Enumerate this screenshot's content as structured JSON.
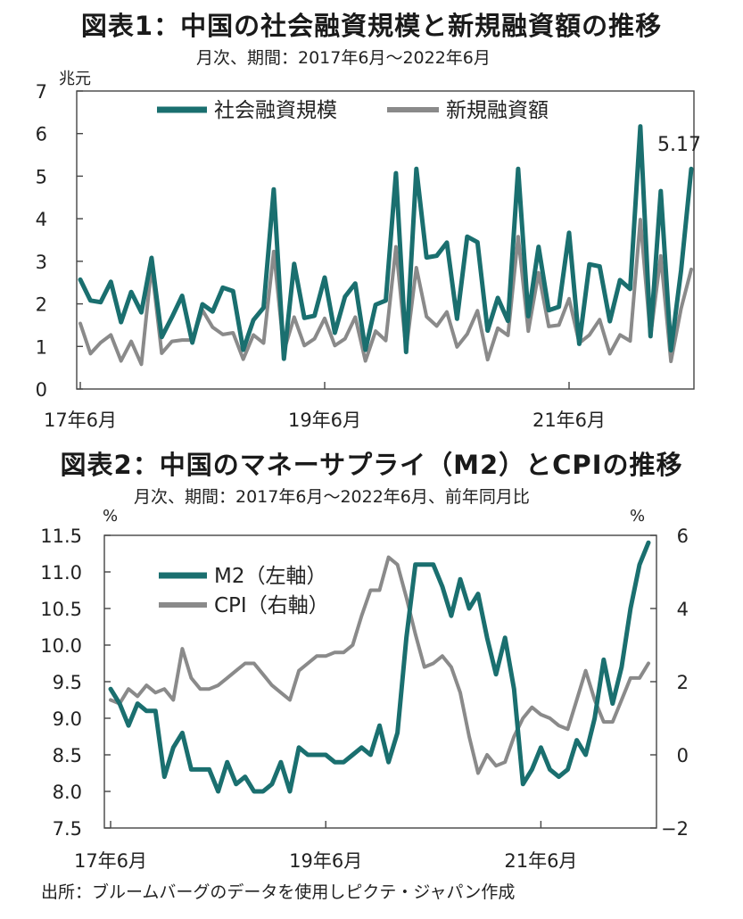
{
  "source": "出所：ブルームバーグのデータを使用しピクテ・ジャパン作成",
  "colors": {
    "teal": "#1a6f6f",
    "gray": "#8a8a8a",
    "axis": "#444444"
  },
  "chart_data": [
    {
      "type": "line",
      "title": "図表1：中国の社会融資規模と新規融資額の推移",
      "subtitle": "月次、期間：2017年6月～2022年6月",
      "ylabel": "兆元",
      "ylim": [
        0,
        7
      ],
      "yticks": [
        "0",
        "1",
        "2",
        "3",
        "4",
        "5",
        "6",
        "7"
      ],
      "x_tick_labels": [
        "17年6月",
        "19年6月",
        "21年6月"
      ],
      "legend_position": "top",
      "annotation": "5.17",
      "series": [
        {
          "name": "社会融資規模",
          "color": "#1a6f6f",
          "values": [
            2.57,
            2.08,
            2.04,
            2.52,
            1.57,
            2.28,
            1.8,
            3.08,
            1.22,
            1.69,
            2.19,
            1.09,
            1.99,
            1.82,
            2.38,
            2.3,
            0.92,
            1.62,
            1.91,
            4.69,
            0.71,
            2.94,
            1.67,
            1.72,
            2.62,
            1.32,
            2.17,
            2.48,
            0.92,
            1.98,
            2.08,
            5.07,
            0.87,
            5.17,
            3.09,
            3.13,
            3.44,
            1.65,
            3.58,
            3.45,
            1.37,
            2.14,
            1.6,
            5.17,
            1.71,
            3.34,
            1.85,
            1.93,
            3.67,
            1.06,
            2.93,
            2.88,
            1.59,
            2.56,
            2.35,
            6.17,
            1.24,
            4.65,
            0.91,
            2.79,
            5.17
          ]
        },
        {
          "name": "新規融資額",
          "color": "#8a8a8a",
          "values": [
            1.54,
            0.83,
            1.09,
            1.27,
            0.66,
            1.12,
            0.58,
            2.9,
            0.84,
            1.12,
            1.15,
            1.15,
            1.85,
            1.45,
            1.28,
            1.32,
            0.7,
            1.27,
            1.08,
            3.23,
            0.89,
            1.69,
            1.02,
            1.18,
            1.66,
            1.02,
            1.18,
            1.69,
            0.66,
            1.36,
            1.14,
            3.34,
            0.91,
            2.85,
            1.7,
            1.48,
            1.81,
            0.99,
            1.29,
            1.84,
            0.69,
            1.43,
            1.26,
            3.58,
            1.36,
            2.73,
            1.47,
            1.5,
            2.12,
            1.08,
            1.27,
            1.63,
            0.83,
            1.27,
            1.13,
            3.98,
            1.23,
            3.13,
            0.65,
            1.89,
            2.81
          ]
        }
      ]
    },
    {
      "type": "line",
      "title": "図表2：中国のマネーサプライ（M2）とCPIの推移",
      "subtitle": "月次、期間：2017年6月～2022年6月、前年同月比",
      "ylabel_left": "%",
      "ylabel_right": "%",
      "ylim_left": [
        7.5,
        11.5
      ],
      "ylim_right": [
        -2,
        6
      ],
      "yticks_left": [
        "7.5",
        "8.0",
        "8.5",
        "9.0",
        "9.5",
        "10.0",
        "10.5",
        "11.0",
        "11.5"
      ],
      "yticks_right": [
        "−2",
        "0",
        "2",
        "4",
        "6"
      ],
      "x_tick_labels": [
        "17年6月",
        "19年6月",
        "21年6月"
      ],
      "legend_position": "upper-left",
      "series": [
        {
          "name": "M2（左軸）",
          "axis": "left",
          "color": "#1a6f6f",
          "values": [
            9.4,
            9.2,
            8.9,
            9.2,
            9.1,
            9.1,
            8.2,
            8.6,
            8.8,
            8.3,
            8.3,
            8.3,
            8.0,
            8.4,
            8.1,
            8.2,
            8.0,
            8.0,
            8.1,
            8.4,
            8.0,
            8.6,
            8.5,
            8.5,
            8.5,
            8.4,
            8.4,
            8.5,
            8.6,
            8.5,
            8.9,
            8.4,
            8.8,
            10.1,
            11.1,
            11.1,
            11.1,
            10.8,
            10.4,
            10.9,
            10.5,
            10.7,
            10.1,
            9.6,
            10.1,
            9.4,
            8.1,
            8.3,
            8.6,
            8.3,
            8.2,
            8.3,
            8.7,
            8.5,
            9.0,
            9.8,
            9.2,
            9.7,
            10.5,
            11.1,
            11.4
          ]
        },
        {
          "name": "CPI（右軸）",
          "axis": "right",
          "color": "#8a8a8a",
          "values": [
            1.5,
            1.4,
            1.8,
            1.6,
            1.9,
            1.7,
            1.8,
            1.5,
            2.9,
            2.1,
            1.8,
            1.8,
            1.9,
            2.1,
            2.3,
            2.5,
            2.5,
            2.2,
            1.9,
            1.7,
            1.5,
            2.3,
            2.5,
            2.7,
            2.7,
            2.8,
            2.8,
            3.0,
            3.8,
            4.5,
            4.5,
            5.4,
            5.2,
            4.3,
            3.3,
            2.4,
            2.5,
            2.7,
            2.4,
            1.7,
            0.5,
            -0.5,
            0.0,
            -0.3,
            -0.2,
            0.5,
            1.0,
            1.3,
            1.1,
            1.0,
            0.8,
            0.7,
            1.5,
            2.3,
            1.5,
            0.9,
            0.9,
            1.5,
            2.1,
            2.1,
            2.5
          ]
        }
      ]
    }
  ]
}
